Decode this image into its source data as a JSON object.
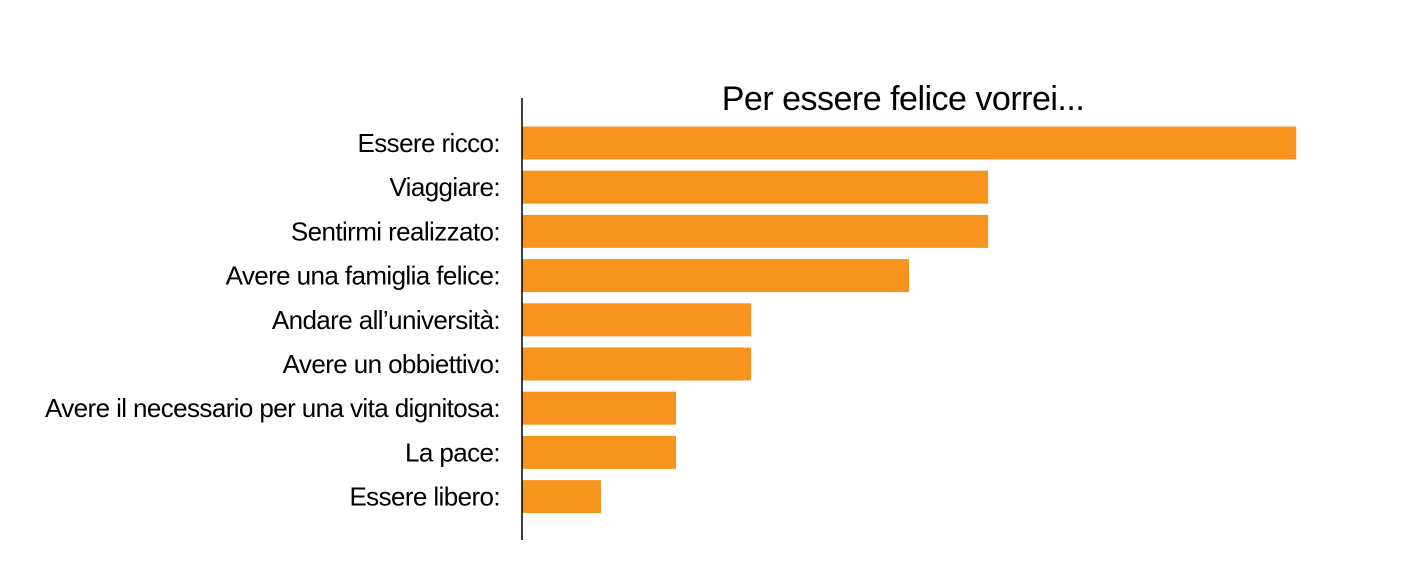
{
  "chart_data": {
    "type": "bar",
    "orientation": "horizontal",
    "title": "Per essere felice vorrei...",
    "categories": [
      "Essere ricco:",
      "Viaggiare:",
      "Sentirmi realizzato:",
      "Avere una famiglia felice:",
      "Andare all’università:",
      "Avere un obbiettivo:",
      "Avere il necessario per una vita dignitosa:",
      "La pace:",
      "Essere libero:"
    ],
    "values": [
      9.8,
      5.9,
      5.9,
      4.9,
      2.9,
      2.9,
      1.95,
      1.95,
      1.0
    ],
    "xlim": [
      0,
      10
    ],
    "grid": false,
    "legend": "none",
    "bar_color": "#F7941D",
    "axis_color": "#000000"
  }
}
